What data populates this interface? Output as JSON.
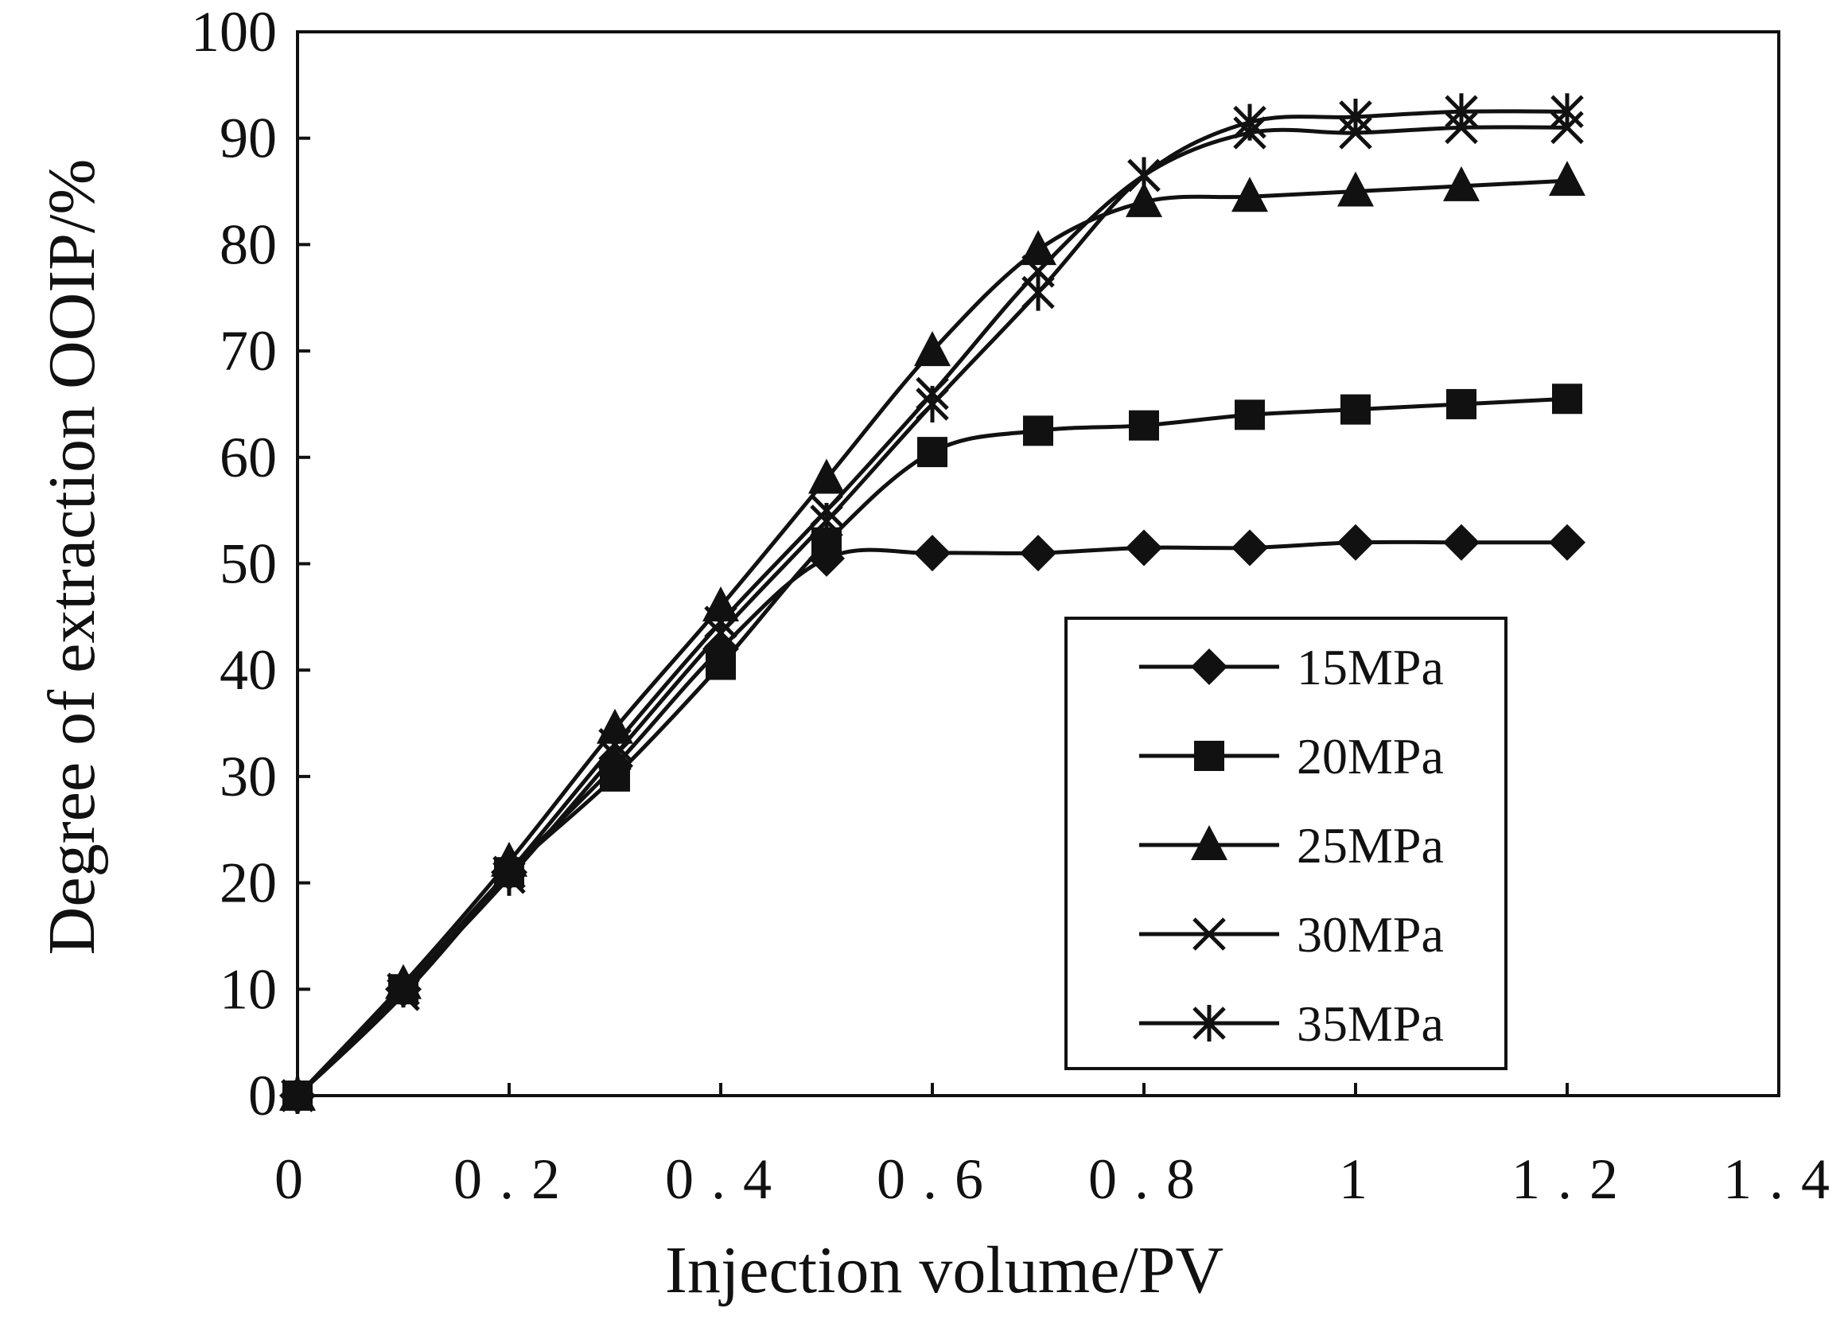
{
  "chart_data": {
    "type": "line",
    "title": "",
    "xlabel": "Injection volume/PV",
    "ylabel": "Degree of extraction OOIP/%",
    "xlim": [
      0,
      1.4
    ],
    "ylim": [
      0,
      100
    ],
    "x_ticks": [
      0,
      0.2,
      0.4,
      0.6,
      0.8,
      1,
      1.2,
      1.4
    ],
    "x_tick_labels": [
      "0",
      "0.2",
      "0.4",
      "0.6",
      "0.8",
      "1",
      "1.2",
      "1.4"
    ],
    "y_ticks": [
      0,
      10,
      20,
      30,
      40,
      50,
      60,
      70,
      80,
      90,
      100
    ],
    "y_tick_labels": [
      "0",
      "10",
      "20",
      "30",
      "40",
      "50",
      "60",
      "70",
      "80",
      "90",
      "100"
    ],
    "grid": false,
    "legend_position": "bottom-right",
    "x": [
      0,
      0.1,
      0.2,
      0.3,
      0.4,
      0.5,
      0.6,
      0.7,
      0.8,
      0.9,
      1.0,
      1.1,
      1.2
    ],
    "series": [
      {
        "name": "15MPa",
        "marker": "diamond",
        "values": [
          0,
          10,
          21,
          31,
          42,
          50.5,
          51,
          51,
          51.5,
          51.5,
          52,
          52,
          52
        ]
      },
      {
        "name": "20MPa",
        "marker": "square",
        "values": [
          0,
          10,
          21,
          30,
          40.5,
          52,
          60.5,
          62.5,
          63,
          64,
          64.5,
          65,
          65.5
        ]
      },
      {
        "name": "25MPa",
        "marker": "triangle",
        "values": [
          0,
          10.5,
          22,
          34.5,
          46,
          58,
          70,
          79.5,
          84,
          84.5,
          85,
          85.5,
          86
        ]
      },
      {
        "name": "30MPa",
        "marker": "x",
        "values": [
          0,
          9.5,
          21,
          33,
          44.5,
          55,
          66,
          77.5,
          86.5,
          90.5,
          90.5,
          91,
          91
        ]
      },
      {
        "name": "35MPa",
        "marker": "star",
        "values": [
          0,
          10,
          20.5,
          32,
          43.5,
          54,
          65,
          75.5,
          86.5,
          91.5,
          92,
          92.5,
          92.5
        ]
      }
    ]
  }
}
